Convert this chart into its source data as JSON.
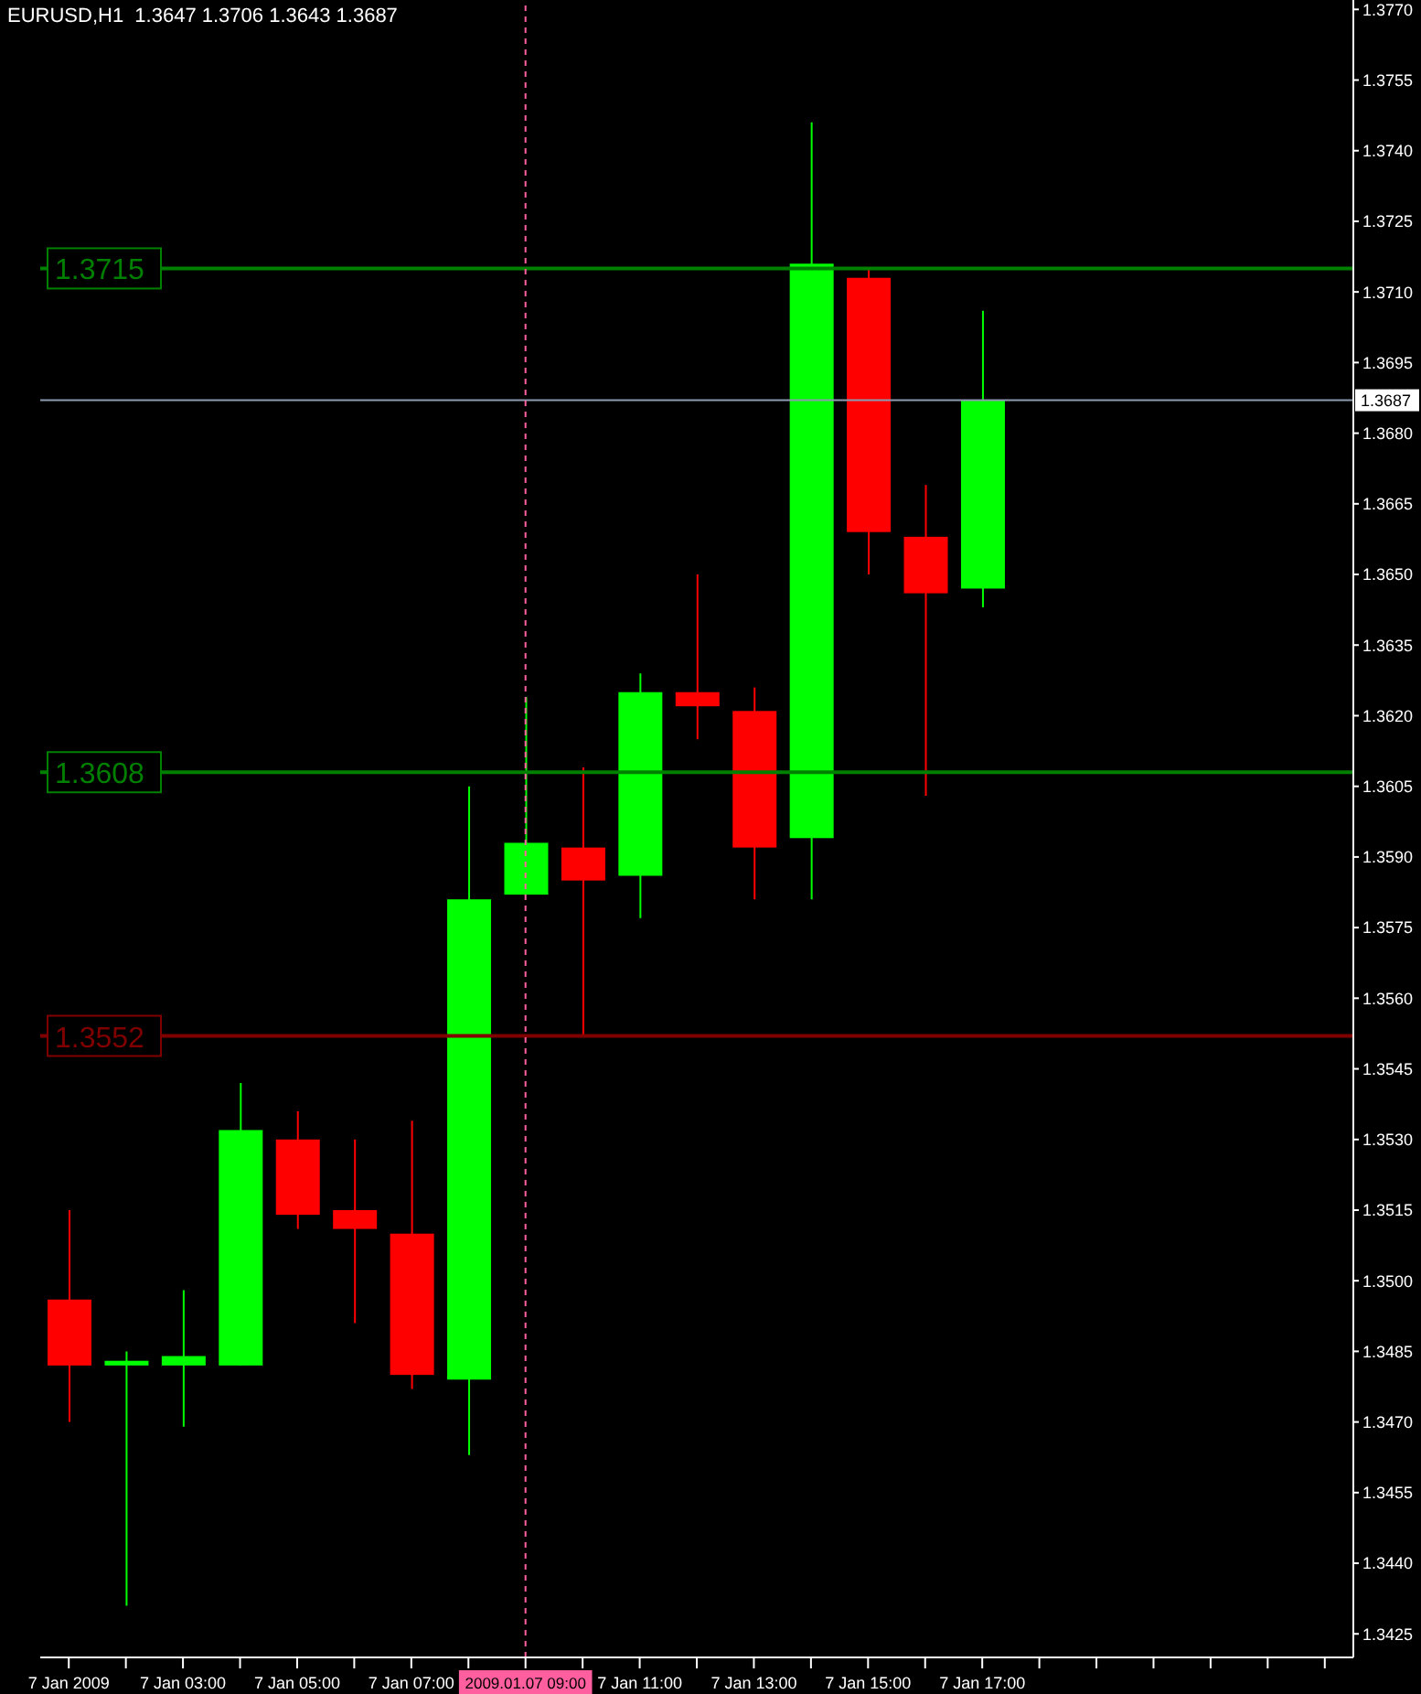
{
  "chart_data": {
    "type": "candlestick",
    "title": "EURUSD,H1  1.3647 1.3706 1.3643 1.3687",
    "categories": [
      "7 Jan 2009",
      null,
      "7 Jan 03:00",
      null,
      "7 Jan 05:00",
      null,
      "7 Jan 07:00",
      null,
      "2009.01.07 09:00",
      null,
      "7 Jan 11:00",
      null,
      "7 Jan 13:00",
      null,
      "7 Jan 15:00",
      null,
      "7 Jan 17:00",
      null,
      null,
      null,
      null,
      null,
      null
    ],
    "ohlc": [
      [
        1.3496,
        1.3515,
        1.347,
        1.3482
      ],
      [
        1.3482,
        1.3485,
        1.3431,
        1.3483
      ],
      [
        1.3482,
        1.3498,
        1.3469,
        1.3484
      ],
      [
        1.3482,
        1.3542,
        1.3482,
        1.3532
      ],
      [
        1.353,
        1.3536,
        1.3511,
        1.3514
      ],
      [
        1.3515,
        1.353,
        1.3491,
        1.3511
      ],
      [
        1.351,
        1.3534,
        1.3477,
        1.348
      ],
      [
        1.3479,
        1.3605,
        1.3463,
        1.3581
      ],
      [
        1.3582,
        1.3624,
        1.3582,
        1.3593
      ],
      [
        1.3592,
        1.3609,
        1.3552,
        1.3585
      ],
      [
        1.3586,
        1.3629,
        1.3577,
        1.3625
      ],
      [
        1.3625,
        1.365,
        1.3615,
        1.3622
      ],
      [
        1.3621,
        1.3626,
        1.3581,
        1.3592
      ],
      [
        1.3594,
        1.3746,
        1.3581,
        1.3716
      ],
      [
        1.3713,
        1.3715,
        1.365,
        1.3659
      ],
      [
        1.3658,
        1.3669,
        1.3603,
        1.3646
      ],
      [
        1.3647,
        1.3706,
        1.3643,
        1.3687
      ],
      null,
      null,
      null,
      null,
      null,
      null
    ],
    "colors": [
      "#ff0000",
      "#00ff00",
      "#00ff00",
      "#00ff00",
      "#ff0000",
      "#ff0000",
      "#ff0000",
      "#00ff00",
      "#00ff00",
      "#ff0000",
      "#00ff00",
      "#ff0000",
      "#ff0000",
      "#00ff00",
      "#ff0000",
      "#ff0000",
      "#00ff00",
      null,
      null,
      null,
      null,
      null,
      null
    ],
    "ylim": [
      1.342,
      1.3772
    ],
    "yticks": [
      1.3425,
      {
        "value": 1.344,
        "label": "1.3440"
      },
      1.3455,
      {
        "value": 1.347,
        "label": "1.3470"
      },
      1.3485,
      {
        "value": 1.35,
        "label": "1.3500"
      },
      1.3515,
      {
        "value": 1.353,
        "label": "1.3530"
      },
      1.3545,
      {
        "value": 1.356,
        "label": "1.3560"
      },
      1.3575,
      {
        "value": 1.359,
        "label": "1.3590"
      },
      1.3605,
      {
        "value": 1.362,
        "label": "1.3620"
      },
      1.3635,
      {
        "value": 1.365,
        "label": "1.3650"
      },
      1.3665,
      {
        "value": 1.368,
        "label": "1.3680"
      },
      1.3695,
      {
        "value": 1.371,
        "label": "1.3710"
      },
      1.3725,
      {
        "value": 1.374,
        "label": "1.3740"
      },
      1.3755,
      {
        "value": 1.377,
        "label": "1.3770"
      }
    ],
    "ref_lines": [
      {
        "axis": "y",
        "value": 1.3608,
        "label": "1.3608",
        "color": "#008000",
        "line_style": "solid"
      },
      {
        "axis": "y",
        "value": 1.3552,
        "label": "1.3552",
        "color": "#800000",
        "line_style": "solid"
      },
      {
        "axis": "y",
        "value": 1.3715,
        "label": "1.3715",
        "color": "#008000",
        "line_style": "solid"
      },
      {
        "axis": "y",
        "value": 1.3687,
        "label": "1.3687",
        "color": "#8c9bb0",
        "line_style": "solid"
      },
      {
        "axis": "x",
        "value": "2009.01.07 09:00",
        "color": "#ff5f9e",
        "line_style": "dashed"
      }
    ]
  }
}
